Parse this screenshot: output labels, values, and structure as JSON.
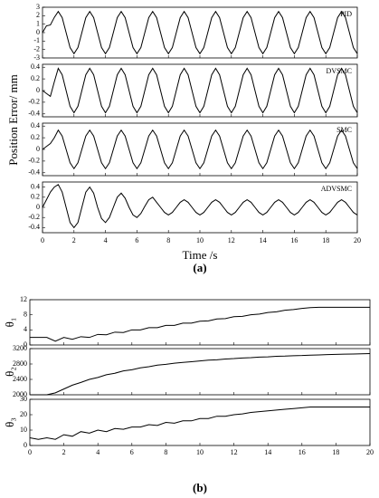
{
  "chart_data": [
    {
      "type": "line",
      "ylabel": "Position Error/ mm",
      "xlabel": "Time /s",
      "caption": "(a)",
      "xlim": [
        0,
        20
      ],
      "xticks": [
        0,
        2,
        4,
        6,
        8,
        10,
        12,
        14,
        16,
        18,
        20
      ],
      "color": "#000000",
      "x": [
        0,
        0.25,
        0.5,
        0.75,
        1,
        1.25,
        1.5,
        1.75,
        2,
        2.25,
        2.5,
        2.75,
        3,
        3.25,
        3.5,
        3.75,
        4,
        4.25,
        4.5,
        4.75,
        5,
        5.25,
        5.5,
        5.75,
        6,
        6.25,
        6.5,
        6.75,
        7,
        7.25,
        7.5,
        7.75,
        8,
        8.25,
        8.5,
        8.75,
        9,
        9.25,
        9.5,
        9.75,
        10,
        10.25,
        10.5,
        10.75,
        11,
        11.25,
        11.5,
        11.75,
        12,
        12.25,
        12.5,
        12.75,
        13,
        13.25,
        13.5,
        13.75,
        14,
        14.25,
        14.5,
        14.75,
        15,
        15.25,
        15.5,
        15.75,
        16,
        16.25,
        16.5,
        16.75,
        17,
        17.25,
        17.5,
        17.75,
        18,
        18.25,
        18.5,
        18.75,
        19,
        19.25,
        19.5,
        19.75,
        20
      ],
      "panels": [
        {
          "name": "PID",
          "ylim": [
            -3,
            3
          ],
          "yticks": [
            -3,
            -2,
            -1,
            0,
            1,
            2,
            3
          ],
          "values": [
            0,
            0.8,
            0.9,
            1.8,
            2.5,
            1.77,
            0,
            -1.77,
            -2.5,
            -1.77,
            0,
            1.77,
            2.5,
            1.77,
            0,
            -1.77,
            -2.5,
            -1.77,
            0,
            1.77,
            2.5,
            1.77,
            0,
            -1.77,
            -2.5,
            -1.77,
            0,
            1.77,
            2.5,
            1.77,
            0,
            -1.77,
            -2.5,
            -1.77,
            0,
            1.77,
            2.5,
            1.77,
            0,
            -1.77,
            -2.5,
            -1.77,
            0,
            1.77,
            2.5,
            1.77,
            0,
            -1.77,
            -2.5,
            -1.77,
            0,
            1.77,
            2.5,
            1.77,
            0,
            -1.77,
            -2.5,
            -1.77,
            0,
            1.77,
            2.5,
            1.77,
            0,
            -1.77,
            -2.5,
            -1.77,
            0,
            1.77,
            2.5,
            1.77,
            0,
            -1.77,
            -2.5,
            -1.77,
            0,
            1.77,
            2.5,
            1.77,
            0,
            -1.77,
            -2.5
          ]
        },
        {
          "name": "DVSMC",
          "ylim": [
            -0.45,
            0.45
          ],
          "yticks": [
            -0.4,
            -0.2,
            0,
            0.2,
            0.4
          ],
          "values": [
            0,
            -0.05,
            -0.1,
            0.15,
            0.38,
            0.27,
            0,
            -0.27,
            -0.38,
            -0.27,
            0,
            0.27,
            0.38,
            0.27,
            0,
            -0.27,
            -0.38,
            -0.27,
            0,
            0.27,
            0.38,
            0.27,
            0,
            -0.27,
            -0.38,
            -0.27,
            0,
            0.27,
            0.38,
            0.27,
            0,
            -0.27,
            -0.38,
            -0.27,
            0,
            0.27,
            0.38,
            0.27,
            0,
            -0.27,
            -0.38,
            -0.27,
            0,
            0.27,
            0.38,
            0.27,
            0,
            -0.27,
            -0.38,
            -0.27,
            0,
            0.27,
            0.38,
            0.27,
            0,
            -0.27,
            -0.38,
            -0.27,
            0,
            0.27,
            0.38,
            0.27,
            0,
            -0.27,
            -0.38,
            -0.27,
            0,
            0.27,
            0.38,
            0.27,
            0,
            -0.27,
            -0.38,
            -0.27,
            0,
            0.27,
            0.38,
            0.27,
            0,
            -0.27,
            -0.38
          ]
        },
        {
          "name": "SMC",
          "ylim": [
            -0.45,
            0.45
          ],
          "yticks": [
            -0.4,
            -0.2,
            0,
            0.2,
            0.4
          ],
          "values": [
            0,
            0.05,
            0.1,
            0.2,
            0.33,
            0.23,
            0,
            -0.23,
            -0.33,
            -0.23,
            0,
            0.23,
            0.33,
            0.23,
            0,
            -0.23,
            -0.33,
            -0.23,
            0,
            0.23,
            0.33,
            0.23,
            0,
            -0.23,
            -0.33,
            -0.23,
            0,
            0.23,
            0.33,
            0.23,
            0,
            -0.23,
            -0.33,
            -0.23,
            0,
            0.23,
            0.33,
            0.23,
            0,
            -0.23,
            -0.33,
            -0.23,
            0,
            0.23,
            0.33,
            0.23,
            0,
            -0.23,
            -0.33,
            -0.23,
            0,
            0.23,
            0.33,
            0.23,
            0,
            -0.23,
            -0.33,
            -0.23,
            0,
            0.23,
            0.33,
            0.23,
            0,
            -0.23,
            -0.33,
            -0.23,
            0,
            0.23,
            0.33,
            0.23,
            0,
            -0.23,
            -0.33,
            -0.23,
            0,
            0.23,
            0.33,
            0.23,
            0,
            -0.23,
            -0.33
          ]
        },
        {
          "name": "ADVSMC",
          "ylim": [
            -0.5,
            0.5
          ],
          "yticks": [
            -0.4,
            -0.2,
            0,
            0.2,
            0.4
          ],
          "values": [
            0,
            0.15,
            0.3,
            0.4,
            0.45,
            0.3,
            0,
            -0.3,
            -0.4,
            -0.3,
            0,
            0.3,
            0.4,
            0.28,
            0,
            -0.22,
            -0.3,
            -0.2,
            0,
            0.2,
            0.28,
            0.18,
            0,
            -0.15,
            -0.2,
            -0.12,
            0.02,
            0.15,
            0.2,
            0.1,
            0,
            -0.1,
            -0.15,
            -0.1,
            0,
            0.1,
            0.15,
            0.1,
            0,
            -0.1,
            -0.15,
            -0.1,
            0,
            0.1,
            0.15,
            0.1,
            0,
            -0.1,
            -0.15,
            -0.1,
            0,
            0.1,
            0.15,
            0.1,
            0,
            -0.1,
            -0.15,
            -0.1,
            0,
            0.1,
            0.15,
            0.1,
            0,
            -0.1,
            -0.15,
            -0.1,
            0,
            0.1,
            0.15,
            0.1,
            0,
            -0.1,
            -0.15,
            -0.1,
            0,
            0.1,
            0.15,
            0.1,
            0,
            -0.1,
            -0.15
          ]
        }
      ]
    },
    {
      "type": "line",
      "caption": "(b)",
      "xlim": [
        0,
        20
      ],
      "xticks": [
        0,
        2,
        4,
        6,
        8,
        10,
        12,
        14,
        16,
        18,
        20
      ],
      "color": "#000000",
      "x": [
        0,
        0.5,
        1,
        1.5,
        2,
        2.5,
        3,
        3.5,
        4,
        4.5,
        5,
        5.5,
        6,
        6.5,
        7,
        7.5,
        8,
        8.5,
        9,
        9.5,
        10,
        10.5,
        11,
        11.5,
        12,
        12.5,
        13,
        13.5,
        14,
        14.5,
        15,
        15.5,
        16,
        16.5,
        17,
        17.5,
        18,
        18.5,
        19,
        19.5,
        20
      ],
      "panels": [
        {
          "ylabel": "θ₁",
          "ylim": [
            0,
            12
          ],
          "yticks": [
            0,
            4,
            8,
            12
          ],
          "values": [
            2,
            2,
            2,
            1,
            2,
            1.5,
            2.2,
            2,
            2.8,
            2.7,
            3.4,
            3.3,
            4,
            4,
            4.6,
            4.6,
            5.2,
            5.2,
            5.8,
            5.8,
            6.3,
            6.4,
            6.9,
            7,
            7.5,
            7.6,
            8,
            8.2,
            8.6,
            8.8,
            9.2,
            9.4,
            9.7,
            9.9,
            10,
            10,
            10,
            10,
            10,
            10,
            10
          ]
        },
        {
          "ylabel": "θ₂",
          "ylim": [
            2000,
            3200
          ],
          "yticks": [
            2000,
            2400,
            2800,
            3200
          ],
          "values": [
            2000,
            2000,
            2000,
            2050,
            2150,
            2250,
            2320,
            2400,
            2450,
            2520,
            2560,
            2620,
            2650,
            2700,
            2730,
            2770,
            2790,
            2820,
            2840,
            2860,
            2880,
            2900,
            2910,
            2930,
            2940,
            2955,
            2965,
            2980,
            2985,
            3000,
            3005,
            3015,
            3020,
            3030,
            3035,
            3045,
            3050,
            3055,
            3060,
            3065,
            3070
          ]
        },
        {
          "ylabel": "θ₃",
          "ylim": [
            0,
            30
          ],
          "yticks": [
            0,
            10,
            20,
            30
          ],
          "values": [
            5,
            4,
            5,
            4,
            7,
            6,
            9,
            8,
            10,
            9,
            11,
            10.5,
            12,
            12,
            13.5,
            13,
            15,
            14.5,
            16,
            16,
            17.5,
            17.5,
            19,
            19,
            20,
            20.5,
            21.5,
            22,
            22.5,
            23,
            23.5,
            24,
            24.5,
            25,
            25,
            25,
            25,
            25,
            25,
            25,
            25
          ]
        }
      ]
    }
  ]
}
